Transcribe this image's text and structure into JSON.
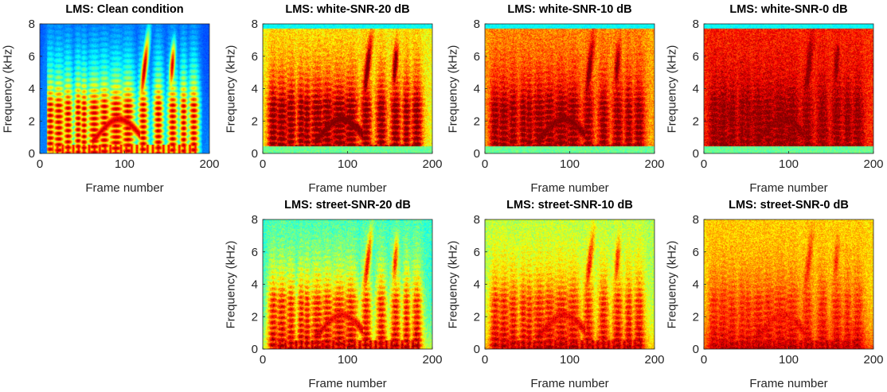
{
  "colormap": "jet",
  "colors": {
    "title": "#000000",
    "axis": "#262626"
  },
  "chart_data": [
    {
      "type": "heatmap",
      "title": "LMS: Clean condition",
      "xlabel": "Frame number",
      "ylabel": "Frequency (kHz)",
      "xlim": [
        0,
        200
      ],
      "ylim": [
        0,
        8
      ],
      "xticks": [
        0,
        100,
        200
      ],
      "yticks": [
        0,
        2,
        4,
        6,
        8
      ],
      "noise": "none",
      "snr_db": null,
      "base_level": 0.22,
      "high_freq_edge": "none"
    },
    {
      "type": "heatmap",
      "title": "LMS: white-SNR-20 dB",
      "xlabel": "Frame number",
      "ylabel": "Frequency (kHz)",
      "xlim": [
        0,
        200
      ],
      "ylim": [
        0,
        8
      ],
      "xticks": [
        0,
        100,
        200
      ],
      "yticks": [
        0,
        2,
        4,
        6,
        8
      ],
      "noise": "white",
      "snr_db": 20,
      "base_level": 0.62,
      "high_freq_edge": "cyan"
    },
    {
      "type": "heatmap",
      "title": "LMS: white-SNR-10 dB",
      "xlabel": "Frame number",
      "ylabel": "Frequency (kHz)",
      "xlim": [
        0,
        200
      ],
      "ylim": [
        0,
        8
      ],
      "xticks": [
        0,
        100,
        200
      ],
      "yticks": [
        0,
        2,
        4,
        6,
        8
      ],
      "noise": "white",
      "snr_db": 10,
      "base_level": 0.72,
      "high_freq_edge": "cyan"
    },
    {
      "type": "heatmap",
      "title": "LMS: white-SNR-0 dB",
      "xlabel": "Frame number",
      "ylabel": "Frequency (kHz)",
      "xlim": [
        0,
        200
      ],
      "ylim": [
        0,
        8
      ],
      "xticks": [
        0,
        100,
        200
      ],
      "yticks": [
        0,
        2,
        4,
        6,
        8
      ],
      "noise": "white",
      "snr_db": 0,
      "base_level": 0.84,
      "high_freq_edge": "cyan"
    },
    {
      "type": "heatmap",
      "title": "LMS: street-SNR-20 dB",
      "xlabel": "Frame number",
      "ylabel": "Frequency (kHz)",
      "xlim": [
        0,
        200
      ],
      "ylim": [
        0,
        8
      ],
      "xticks": [
        0,
        100,
        200
      ],
      "yticks": [
        0,
        2,
        4,
        6,
        8
      ],
      "noise": "street",
      "snr_db": 20,
      "base_level": 0.42,
      "high_freq_edge": "none"
    },
    {
      "type": "heatmap",
      "title": "LMS: street-SNR-10 dB",
      "xlabel": "Frame number",
      "ylabel": "Frequency (kHz)",
      "xlim": [
        0,
        200
      ],
      "ylim": [
        0,
        8
      ],
      "xticks": [
        0,
        100,
        200
      ],
      "yticks": [
        0,
        2,
        4,
        6,
        8
      ],
      "noise": "street",
      "snr_db": 10,
      "base_level": 0.54,
      "high_freq_edge": "none"
    },
    {
      "type": "heatmap",
      "title": "LMS: street-SNR-0 dB",
      "xlabel": "Frame number",
      "ylabel": "Frequency (kHz)",
      "xlim": [
        0,
        200
      ],
      "ylim": [
        0,
        8
      ],
      "xticks": [
        0,
        100,
        200
      ],
      "yticks": [
        0,
        2,
        4,
        6,
        8
      ],
      "noise": "street",
      "snr_db": 0,
      "base_level": 0.66,
      "high_freq_edge": "none"
    }
  ]
}
